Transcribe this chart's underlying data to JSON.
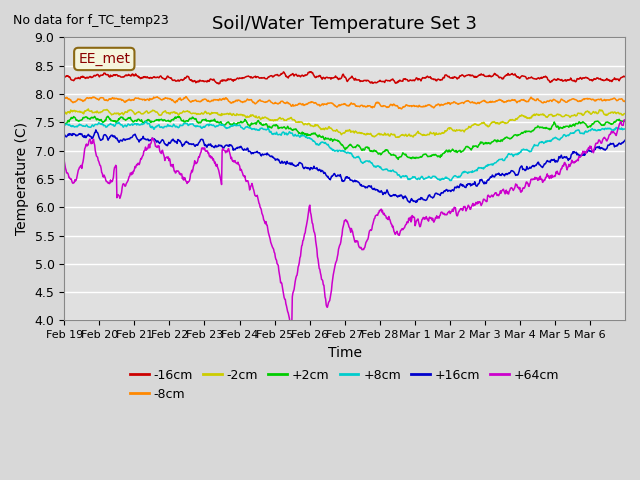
{
  "title": "Soil/Water Temperature Set 3",
  "xlabel": "Time",
  "ylabel": "Temperature (C)",
  "ylim": [
    4.0,
    9.0
  ],
  "yticks": [
    4.0,
    4.5,
    5.0,
    5.5,
    6.0,
    6.5,
    7.0,
    7.5,
    8.0,
    8.5,
    9.0
  ],
  "xtick_labels": [
    "Feb 19",
    "Feb 20",
    "Feb 21",
    "Feb 22",
    "Feb 23",
    "Feb 24",
    "Feb 25",
    "Feb 26",
    "Feb 27",
    "Feb 28",
    "Mar 1",
    "Mar 2",
    "Mar 3",
    "Mar 4",
    "Mar 5",
    "Mar 6"
  ],
  "no_data_text": "No data for f_TC_temp23",
  "legend_label_text": "EE_met",
  "series_order": [
    "-16cm",
    "-8cm",
    "-2cm",
    "+2cm",
    "+8cm",
    "+16cm",
    "+64cm"
  ],
  "series_colors": [
    "#cc0000",
    "#ff8800",
    "#cccc00",
    "#00cc00",
    "#00cccc",
    "#0000cc",
    "#cc00cc"
  ],
  "series_labels": [
    "-16cm",
    "-8cm",
    "-2cm",
    "+2cm",
    "+8cm",
    "+16cm",
    "+64cm"
  ],
  "background_color": "#d8d8d8",
  "plot_bg_color": "#e0e0e0",
  "grid_color": "#ffffff"
}
